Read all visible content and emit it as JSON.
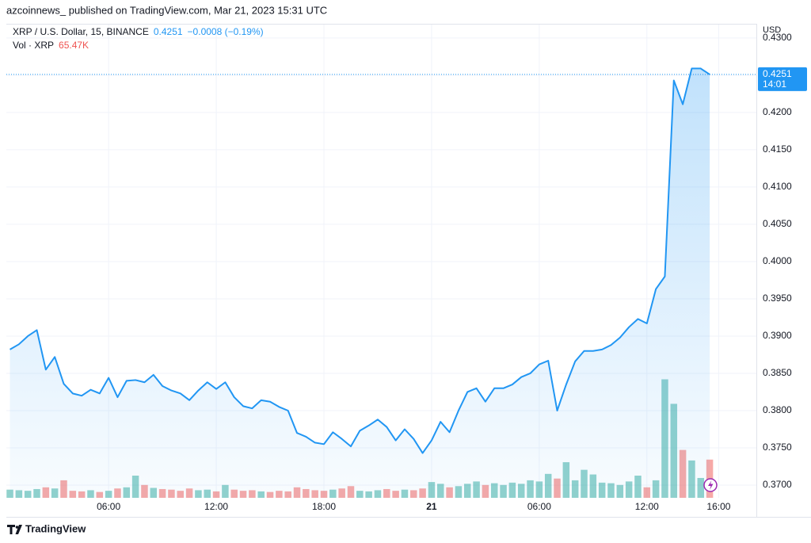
{
  "header": {
    "text": "azcoinnews_ published on TradingView.com, Mar 21, 2023 15:31 UTC"
  },
  "footer": {
    "brand": "TradingView"
  },
  "chart_data": {
    "type": "line",
    "legend": {
      "price": "0.4251",
      "change": "−0.0008 (−0.19%)",
      "volume": "65.47K"
    },
    "last_price": {
      "value": 0.4251,
      "label": "0.4251",
      "countdown": "14:01"
    },
    "axis_unit": "USD",
    "x": [
      0.5,
      1,
      1.5,
      2,
      2.5,
      3,
      3.5,
      4,
      4.5,
      5,
      5.5,
      6,
      6.5,
      7,
      7.5,
      8,
      8.5,
      9,
      9.5,
      10,
      10.5,
      11,
      11.5,
      12,
      12.5,
      13,
      13.5,
      14,
      14.5,
      15,
      15.5,
      16,
      16.5,
      17,
      17.5,
      18,
      18.5,
      19,
      19.5,
      20,
      20.5,
      21,
      21.5,
      22,
      22.5,
      23,
      23.5,
      24,
      24.5,
      25,
      25.5,
      26,
      26.5,
      27,
      27.5,
      28,
      28.5,
      29,
      29.5,
      30,
      30.5,
      31,
      31.5,
      32,
      32.5,
      33,
      33.5,
      34,
      34.5,
      35,
      35.5,
      36,
      36.5,
      37,
      37.5,
      38,
      38.5,
      39,
      39.5
    ],
    "xlim": [
      0.3,
      42.1
    ],
    "xticks": [
      {
        "value": 6,
        "label": "06:00"
      },
      {
        "value": 12,
        "label": "12:00"
      },
      {
        "value": 18,
        "label": "18:00"
      },
      {
        "value": 24,
        "label": "21"
      },
      {
        "value": 30,
        "label": "06:00"
      },
      {
        "value": 36,
        "label": "12:00"
      },
      {
        "value": 40,
        "label": "16:00"
      }
    ],
    "ylim": [
      0.3683,
      0.4319
    ],
    "yticks": [
      {
        "value": 0.37,
        "label": "0.3700"
      },
      {
        "value": 0.375,
        "label": "0.3750"
      },
      {
        "value": 0.38,
        "label": "0.3800"
      },
      {
        "value": 0.385,
        "label": "0.3850"
      },
      {
        "value": 0.39,
        "label": "0.3900"
      },
      {
        "value": 0.395,
        "label": "0.3950"
      },
      {
        "value": 0.4,
        "label": "0.4000"
      },
      {
        "value": 0.405,
        "label": "0.4050"
      },
      {
        "value": 0.41,
        "label": "0.4100"
      },
      {
        "value": 0.415,
        "label": "0.4150"
      },
      {
        "value": 0.42,
        "label": "0.4200"
      },
      {
        "value": 0.425,
        "label": "0.4250"
      },
      {
        "value": 0.43,
        "label": "0.4300"
      }
    ],
    "y2lim": [
      0,
      812
    ],
    "grid": true,
    "series": [
      {
        "name": "XRP / U.S. Dollar, 15, BINANCE",
        "color": "#2196f3",
        "values": [
          0.3882,
          0.3889,
          0.39,
          0.3908,
          0.3855,
          0.3872,
          0.3836,
          0.3823,
          0.382,
          0.3828,
          0.3823,
          0.3844,
          0.3818,
          0.384,
          0.3841,
          0.3838,
          0.3848,
          0.3833,
          0.3827,
          0.3823,
          0.3814,
          0.3827,
          0.3838,
          0.3829,
          0.3838,
          0.3818,
          0.3806,
          0.3803,
          0.3814,
          0.3812,
          0.3805,
          0.38,
          0.377,
          0.3765,
          0.3757,
          0.3755,
          0.3771,
          0.3762,
          0.3752,
          0.3773,
          0.378,
          0.3788,
          0.3778,
          0.376,
          0.3775,
          0.3762,
          0.3743,
          0.376,
          0.3785,
          0.3771,
          0.38,
          0.3825,
          0.383,
          0.3812,
          0.383,
          0.383,
          0.3835,
          0.3845,
          0.385,
          0.3862,
          0.3867,
          0.38,
          0.3835,
          0.3866,
          0.388,
          0.388,
          0.3882,
          0.3888,
          0.3898,
          0.3912,
          0.3923,
          0.3917,
          0.3963,
          0.398,
          0.4243,
          0.4211,
          0.4259,
          0.4259,
          0.4251
        ]
      },
      {
        "name": "Vol · XRP",
        "type": "bar",
        "axis": "y2",
        "up_color": "#26a69a",
        "down_color": "#ef5350",
        "values": [
          14,
          13,
          12,
          15,
          18,
          16,
          30,
          12,
          11,
          13,
          10,
          12,
          16,
          18,
          38,
          22,
          17,
          15,
          14,
          12,
          16,
          13,
          14,
          11,
          22,
          14,
          12,
          13,
          11,
          10,
          12,
          11,
          18,
          15,
          13,
          12,
          14,
          16,
          20,
          12,
          11,
          13,
          15,
          12,
          14,
          13,
          16,
          27,
          24,
          18,
          20,
          24,
          28,
          22,
          25,
          22,
          26,
          24,
          30,
          28,
          41,
          33,
          61,
          30,
          48,
          40,
          26,
          25,
          22,
          28,
          38,
          18,
          30,
          203,
          161,
          82,
          64,
          34,
          65.47
        ]
      }
    ]
  }
}
